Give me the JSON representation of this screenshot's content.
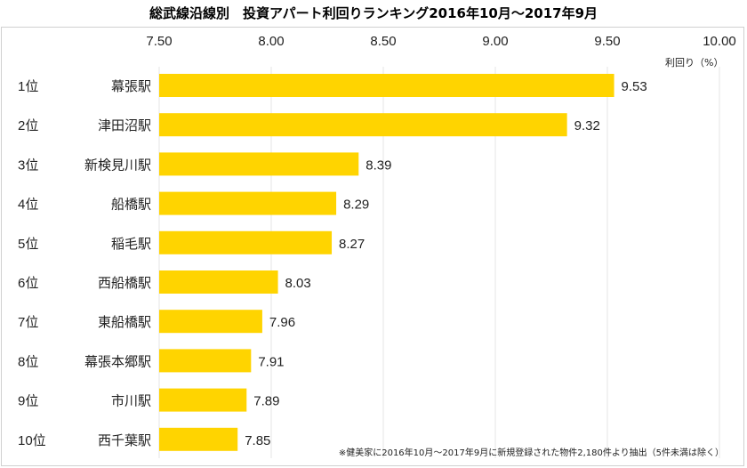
{
  "chart_data": {
    "type": "bar",
    "orientation": "horizontal",
    "title": "総武線沿線別　投資アパート利回りランキング2016年10月～2017年9月",
    "xlabel": "利回り（%）",
    "xlim": [
      7.5,
      10.0
    ],
    "xticks": [
      "7.50",
      "8.00",
      "8.50",
      "9.00",
      "9.50",
      "10.00"
    ],
    "grid": true,
    "ranks": [
      "1位",
      "2位",
      "3位",
      "4位",
      "5位",
      "6位",
      "7位",
      "8位",
      "9位",
      "10位"
    ],
    "categories": [
      "幕張駅",
      "津田沼駅",
      "新検見川駅",
      "船橋駅",
      "稲毛駅",
      "西船橋駅",
      "東船橋駅",
      "幕張本郷駅",
      "市川駅",
      "西千葉駅"
    ],
    "values": [
      9.53,
      9.32,
      8.39,
      8.29,
      8.27,
      8.03,
      7.96,
      7.91,
      7.89,
      7.85
    ],
    "bar_color": "#FFD400",
    "note": "※健美家に2016年10月～2017年9月に新規登録された物件2,180件より抽出（5件未満は除く）"
  }
}
